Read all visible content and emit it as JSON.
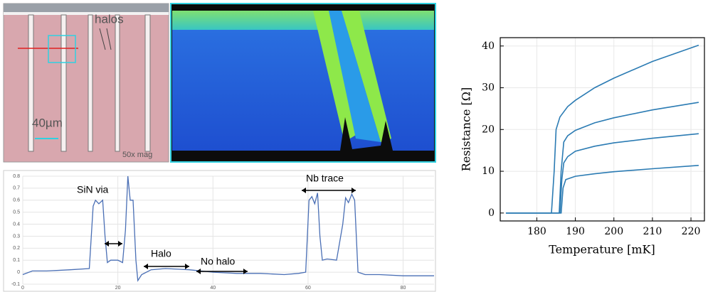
{
  "annotations": {
    "micrograph": [
      "halos",
      "40µm",
      "50x mag"
    ]
  },
  "chart_data": [
    {
      "type": "line",
      "x": [
        0,
        2,
        5,
        10,
        14,
        14.8,
        15.3,
        16,
        16.8,
        17.3,
        17.8,
        18.5,
        20,
        21,
        21.6,
        22.1,
        22.6,
        23.2,
        23.8,
        24.2,
        25,
        27,
        30,
        35,
        40,
        45,
        50,
        55,
        58,
        59.5,
        60.2,
        60.8,
        61.4,
        62,
        62.5,
        63,
        64,
        66,
        67.3,
        67.9,
        68.5,
        69.2,
        69.8,
        70.5,
        72,
        75,
        80,
        86.5
      ],
      "series": [
        {
          "color": "#4a6fb5",
          "values": [
            -0.02,
            0.01,
            0.01,
            0.02,
            0.03,
            0.55,
            0.6,
            0.57,
            0.6,
            0.3,
            0.08,
            0.1,
            0.1,
            0.08,
            0.35,
            0.8,
            0.6,
            0.6,
            0.1,
            -0.07,
            -0.02,
            0.02,
            0.03,
            0.02,
            0.0,
            -0.01,
            -0.01,
            -0.02,
            -0.01,
            0.0,
            0.6,
            0.63,
            0.57,
            0.66,
            0.3,
            0.1,
            0.11,
            0.1,
            0.4,
            0.62,
            0.58,
            0.65,
            0.6,
            0.0,
            -0.02,
            -0.02,
            -0.03,
            -0.03
          ]
        }
      ],
      "xlim": [
        0,
        86.5
      ],
      "xticks": [
        0,
        20,
        40,
        60,
        80
      ],
      "ylim": [
        -0.1,
        0.8
      ],
      "yticks": [
        -0.1,
        0,
        0.1,
        0.2,
        0.3,
        0.4,
        0.5,
        0.6,
        0.7,
        0.8
      ],
      "grid": true,
      "annotations": [
        "SiN via",
        "Halo",
        "No halo",
        "Nb trace"
      ]
    },
    {
      "type": "line",
      "x_label": "Temperature [mK]",
      "y_label": "Resistance [Ω]",
      "xlim": [
        170.5,
        223.5
      ],
      "xticks": [
        180,
        190,
        200,
        210,
        220
      ],
      "ylim": [
        -1.9,
        42
      ],
      "yticks": [
        0,
        10,
        20,
        30,
        40
      ],
      "grid": true,
      "series": [
        {
          "color": "#2b7bb3",
          "x": [
            172,
            183.8,
            184.5,
            185,
            186,
            188,
            190,
            195,
            200,
            210,
            222
          ],
          "values": [
            0,
            0,
            10,
            20,
            23,
            25.5,
            27,
            30,
            32.3,
            36.3,
            40.2
          ]
        },
        {
          "color": "#2b7bb3",
          "x": [
            172,
            185.8,
            186.3,
            187,
            188,
            190,
            195,
            200,
            210,
            222
          ],
          "values": [
            0,
            0,
            10,
            17,
            18.5,
            19.8,
            21.6,
            22.8,
            24.7,
            26.5
          ]
        },
        {
          "color": "#2b7bb3",
          "x": [
            172,
            186,
            186.5,
            187,
            188,
            190,
            195,
            200,
            210,
            222
          ],
          "values": [
            0,
            0,
            8,
            12,
            13.5,
            14.8,
            16,
            16.8,
            17.9,
            19
          ]
        },
        {
          "color": "#2b7bb3",
          "x": [
            172,
            186.3,
            186.8,
            187.5,
            190,
            195,
            200,
            210,
            222
          ],
          "values": [
            0,
            0,
            6,
            8,
            8.8,
            9.4,
            9.9,
            10.6,
            11.4
          ]
        }
      ]
    }
  ]
}
